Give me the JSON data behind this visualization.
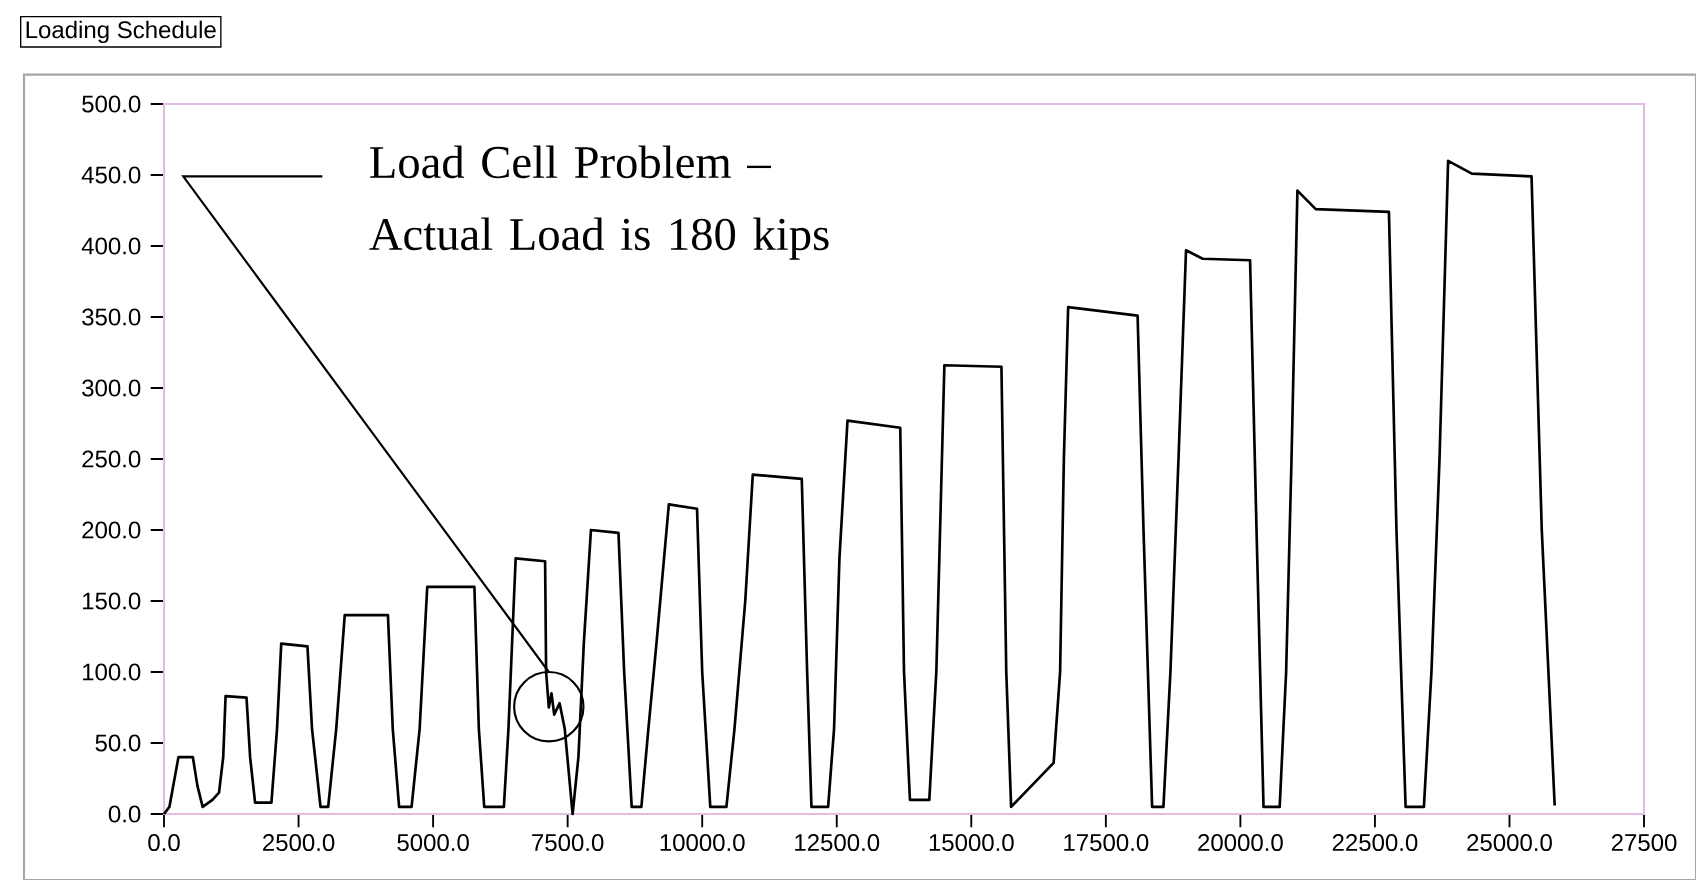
{
  "chart_data": {
    "type": "line",
    "title": "Loading Schedule",
    "xlim": [
      0,
      27500
    ],
    "ylim": [
      0,
      500
    ],
    "xticks": [
      {
        "value": 0,
        "label": "0.0"
      },
      {
        "value": 2500,
        "label": "2500.0"
      },
      {
        "value": 5000,
        "label": "5000.0"
      },
      {
        "value": 7500,
        "label": "7500.0"
      },
      {
        "value": 10000,
        "label": "10000.0"
      },
      {
        "value": 12500,
        "label": "12500.0"
      },
      {
        "value": 15000,
        "label": "15000.0"
      },
      {
        "value": 17500,
        "label": "17500.0"
      },
      {
        "value": 20000,
        "label": "20000.0"
      },
      {
        "value": 22500,
        "label": "22500.0"
      },
      {
        "value": 25000,
        "label": "25000.0"
      },
      {
        "value": 27500,
        "label": "27500"
      }
    ],
    "yticks": [
      {
        "value": 0,
        "label": "0.0"
      },
      {
        "value": 50,
        "label": "50.0"
      },
      {
        "value": 100,
        "label": "100.0"
      },
      {
        "value": 150,
        "label": "150.0"
      },
      {
        "value": 200,
        "label": "200.0"
      },
      {
        "value": 250,
        "label": "250.0"
      },
      {
        "value": 300,
        "label": "300.0"
      },
      {
        "value": 350,
        "label": "350.0"
      },
      {
        "value": 400,
        "label": "400.0"
      },
      {
        "value": 450,
        "label": "450.0"
      },
      {
        "value": 500,
        "label": "500.0"
      }
    ],
    "annotations": [
      {
        "text": "Load Cell Problem – Actual Load is 180 kips",
        "x": 7150,
        "y": 100
      }
    ],
    "series": [
      {
        "color": "#000000",
        "x": [
          0,
          100,
          268,
          536,
          620,
          718,
          900,
          1022,
          1100,
          1144,
          1533,
          1600,
          1692,
          1996,
          2100,
          2178,
          2665,
          2750,
          2908,
          3050,
          3200,
          3358,
          4161,
          4250,
          4368,
          4600,
          4750,
          4891,
          5767,
          5850,
          5950,
          6315,
          6400,
          6534,
          7081,
          7100,
          7150,
          7200,
          7250,
          7350,
          7446,
          7592,
          7700,
          7800,
          7933,
          8444,
          8550,
          8690,
          8870,
          9000,
          9150,
          9380,
          9904,
          10000,
          10150,
          10450,
          10600,
          10800,
          10940,
          11850,
          11950,
          12030,
          12340,
          12450,
          12550,
          12700,
          13680,
          13750,
          13860,
          14220,
          14350,
          14420,
          14500,
          15560,
          15650,
          15740,
          16530,
          16650,
          16720,
          16800,
          18090,
          18200,
          18360,
          18570,
          18700,
          18850,
          18990,
          19300,
          20180,
          20300,
          20430,
          20730,
          20850,
          20950,
          21060,
          21400,
          22760,
          22900,
          23070,
          23410,
          23550,
          23700,
          23860,
          24300,
          25410,
          25600,
          25840
        ],
        "values": [
          0,
          5,
          40,
          40,
          20,
          5,
          10,
          15,
          40,
          83,
          82,
          40,
          8,
          8,
          60,
          120,
          118,
          60,
          5,
          5,
          60,
          140,
          140,
          60,
          5,
          5,
          60,
          160,
          160,
          60,
          5,
          5,
          60,
          180,
          178,
          100,
          75,
          85,
          70,
          78,
          60,
          0,
          40,
          120,
          200,
          198,
          100,
          5,
          5,
          60,
          120,
          218,
          215,
          100,
          5,
          5,
          60,
          150,
          239,
          236,
          100,
          5,
          5,
          60,
          180,
          277,
          272,
          100,
          10,
          10,
          100,
          200,
          316,
          315,
          100,
          5,
          36,
          100,
          250,
          357,
          351,
          200,
          5,
          5,
          100,
          250,
          397,
          391,
          390,
          200,
          5,
          5,
          100,
          250,
          439,
          426,
          424,
          200,
          5,
          5,
          100,
          250,
          460,
          451,
          449,
          200,
          6
        ]
      }
    ]
  }
}
